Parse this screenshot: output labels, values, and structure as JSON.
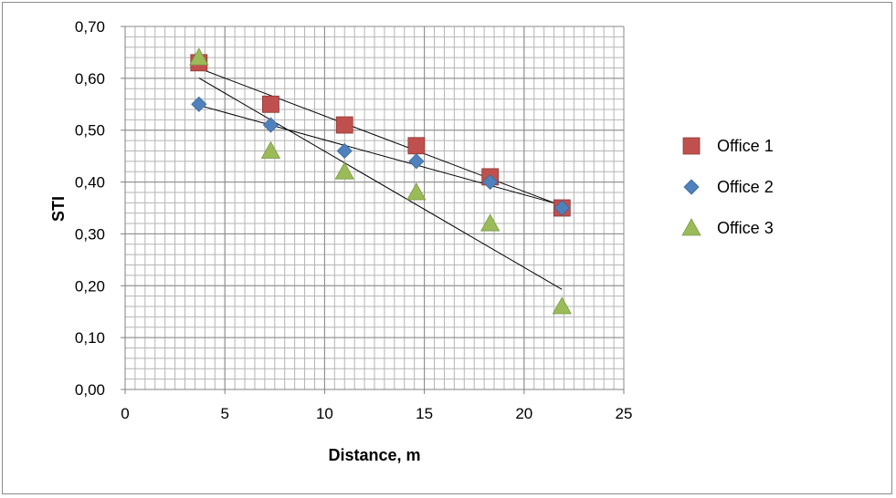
{
  "chart_data": {
    "type": "scatter",
    "title": "",
    "xlabel": "Distance, m",
    "ylabel": "STI",
    "xlim": [
      0,
      25
    ],
    "ylim": [
      0,
      0.7
    ],
    "x_ticks": [
      "0",
      "5",
      "10",
      "15",
      "20",
      "25"
    ],
    "y_ticks": [
      "0,00",
      "0,10",
      "0,20",
      "0,30",
      "0,40",
      "0,50",
      "0,60",
      "0,70"
    ],
    "grid": true,
    "legend_position": "right",
    "series": [
      {
        "name": "Office 1",
        "marker": "square",
        "color": "#C0504D",
        "x": [
          3.7,
          7.3,
          11.0,
          14.6,
          18.3,
          21.9
        ],
        "y": [
          0.63,
          0.55,
          0.51,
          0.47,
          0.41,
          0.35
        ],
        "trendline": true
      },
      {
        "name": "Office 2",
        "marker": "diamond",
        "color": "#4F81BD",
        "x": [
          3.7,
          7.3,
          11.0,
          14.6,
          18.3,
          21.9
        ],
        "y": [
          0.55,
          0.51,
          0.46,
          0.44,
          0.4,
          0.35
        ],
        "trendline": true
      },
      {
        "name": "Office 3",
        "marker": "triangle",
        "color": "#9BBB59",
        "x": [
          3.7,
          7.3,
          11.0,
          14.6,
          18.3,
          21.9
        ],
        "y": [
          0.64,
          0.46,
          0.42,
          0.38,
          0.32,
          0.16
        ],
        "trendline": true
      }
    ]
  }
}
